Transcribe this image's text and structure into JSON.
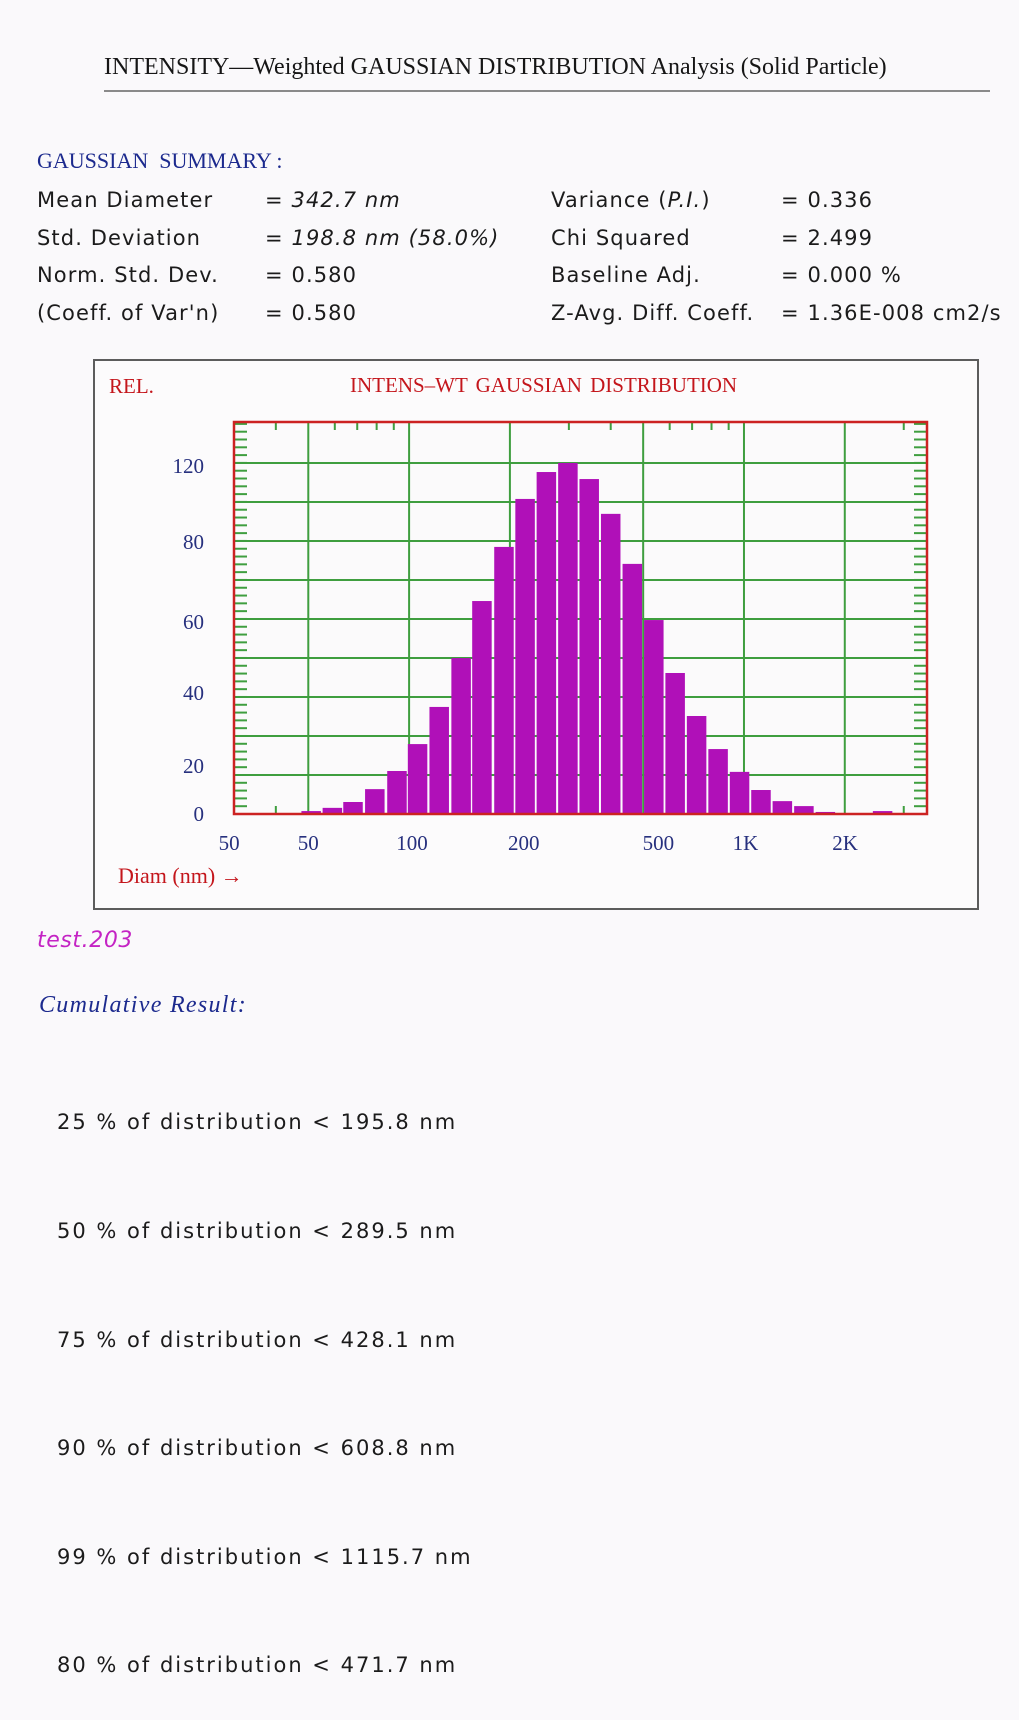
{
  "page": {
    "title": "INTENSITY—Weighted GAUSSIAN DISTRIBUTION Analysis (Solid Particle)"
  },
  "summary": {
    "heading": "GAUSSIAN  SUMMARY :",
    "left": [
      {
        "label": "Mean Diameter",
        "eq": "=",
        "value": "342.7 nm"
      },
      {
        "label": "Std. Deviation",
        "eq": "=",
        "value": "198.8 nm (58.0%)"
      },
      {
        "label": "Norm. Std. Dev.",
        "eq": "=",
        "value": "0.580"
      },
      {
        "label": "(Coeff. of Var'n)",
        "eq": "=",
        "value": "0.580"
      }
    ],
    "right": [
      {
        "label_pre": "Variance (",
        "label_em": "P.I.",
        "label_post": ")",
        "eq": "=",
        "value": "0.336"
      },
      {
        "label": "Chi Squared",
        "eq": "=",
        "value": "2.499"
      },
      {
        "label": "Baseline Adj.",
        "eq": "=",
        "value": "0.000 %"
      },
      {
        "label": "Z-Avg. Diff. Coeff.",
        "eq": "=",
        "value": "1.36E-008 cm2/s"
      }
    ]
  },
  "sample": {
    "name": "test.203"
  },
  "cumulative": {
    "heading": "Cumulative Result:",
    "items": [
      {
        "percent": "25 %",
        "phrase": "of distribution <",
        "value": "195.8 nm"
      },
      {
        "percent": "50 %",
        "phrase": "of distribution <",
        "value": "289.5 nm"
      },
      {
        "percent": "75 %",
        "phrase": "of distribution <",
        "value": "428.1 nm"
      },
      {
        "percent": "90 %",
        "phrase": "of distribution <",
        "value": "608.8 nm"
      },
      {
        "percent": "99 %",
        "phrase": "of distribution <",
        "value": "1115.7 nm"
      },
      {
        "percent": "80 %",
        "phrase": "of distribution <",
        "value": "471.7 nm"
      }
    ]
  },
  "chart_data": {
    "type": "bar",
    "title": "INTENS–WT GAUSSIAN DISTRIBUTION",
    "ylabel": "REL.",
    "xlabel": "Diam (nm) →",
    "x_scale": "log",
    "xlim": [
      30,
      3520
    ],
    "ylim": [
      0,
      134
    ],
    "grid": true,
    "categories": [
      51,
      59,
      68,
      79,
      92,
      106,
      123,
      143,
      165,
      192,
      222,
      257,
      298,
      345,
      400,
      464,
      538,
      623,
      722,
      837,
      970,
      1124,
      1302,
      1510,
      1750,
      2594
    ],
    "values": [
      1.0,
      2.1,
      4.1,
      8.5,
      14.7,
      23.9,
      36.6,
      53.3,
      72.8,
      91.3,
      107.7,
      116.9,
      120.0,
      114.5,
      102.6,
      85.5,
      66.3,
      48.2,
      33.5,
      22.2,
      14.4,
      8.2,
      4.4,
      2.7,
      0.7,
      1.0
    ],
    "xticks": [
      {
        "label": "50",
        "at": 29
      },
      {
        "label": "50",
        "at": 50
      },
      {
        "label": "100",
        "at": 102
      },
      {
        "label": "200",
        "at": 220
      },
      {
        "label": "500",
        "at": 555
      },
      {
        "label": "1K",
        "at": 1010
      },
      {
        "label": "2K",
        "at": 2005
      }
    ],
    "yticks": [
      {
        "label": "120",
        "at": 119
      },
      {
        "label": "80",
        "at": 93
      },
      {
        "label": "60",
        "at": 65.6
      },
      {
        "label": "40",
        "at": 41.4
      },
      {
        "label": "20",
        "at": 16.4
      },
      {
        "label": "0",
        "at": 0
      }
    ],
    "x_gridlines": [
      50,
      100,
      200,
      500,
      1000,
      2000
    ],
    "y_gridlines": [
      13.33,
      26.67,
      40,
      53.33,
      66.67,
      80,
      93.33,
      106.67,
      120
    ],
    "y_minor_tick_step": 2.667,
    "x_minor_ticks_top": [
      40,
      60,
      70,
      80,
      90,
      300,
      400,
      600,
      700,
      800,
      900,
      3000
    ],
    "x_minor_ticks_bottom": [
      40,
      3000
    ],
    "colors": {
      "bar": "#b010b8",
      "grid": "#3f9e3f",
      "plot_border": "#cc2222",
      "axis_text": "#27307e"
    }
  }
}
